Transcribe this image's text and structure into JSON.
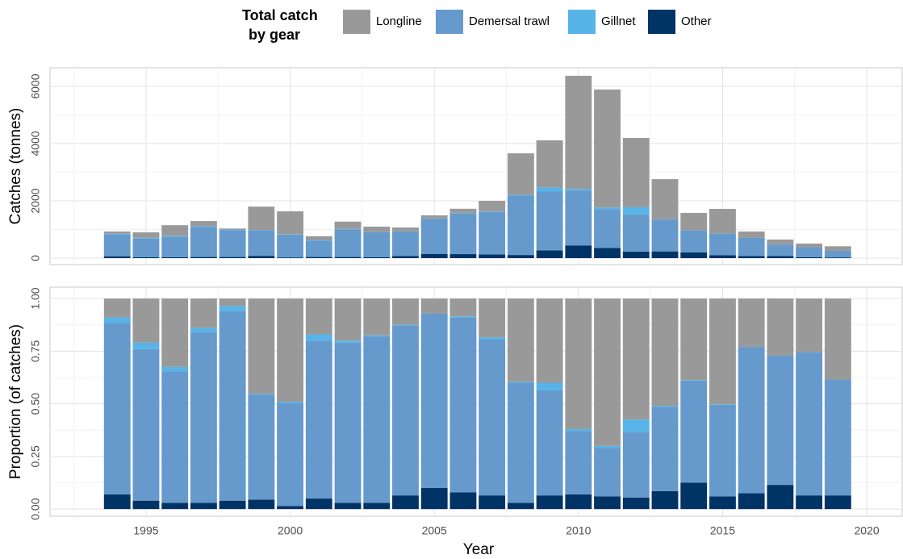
{
  "chart_data": [
    {
      "type": "stacked_bar",
      "legend_title": [
        "Total catch",
        "by gear"
      ],
      "y_label": "Catches (tonnes)",
      "x": [
        1994,
        1995,
        1996,
        1997,
        1998,
        1999,
        2000,
        2001,
        2002,
        2003,
        2004,
        2005,
        2006,
        2007,
        2008,
        2009,
        2010,
        2011,
        2012,
        2013,
        2014,
        2015,
        2016,
        2017,
        2018,
        2019
      ],
      "xlim": [
        1991.67,
        2021.23
      ],
      "ylim": [
        -225,
        6650
      ],
      "yticks": [
        0,
        2000,
        4000,
        6000
      ],
      "grid": true,
      "series": [
        {
          "name": "Longline",
          "color": "#999999",
          "values": [
            80,
            190,
            370,
            180,
            35,
            815,
            800,
            130,
            255,
            190,
            135,
            105,
            145,
            370,
            1445,
            1645,
            3950,
            4120,
            2420,
            1405,
            610,
            860,
            215,
            175,
            130,
            160
          ]
        },
        {
          "name": "Demersal trawl",
          "color": "#6699cc",
          "values": [
            760,
            650,
            720,
            1050,
            935,
            900,
            800,
            570,
            965,
            870,
            860,
            1235,
            1430,
            1480,
            2085,
            2055,
            1910,
            1355,
            1300,
            1105,
            765,
            750,
            645,
            400,
            345,
            230
          ]
        },
        {
          "name": "Gillnet",
          "color": "#56b4e9",
          "values": [
            25,
            25,
            25,
            25,
            25,
            5,
            10,
            25,
            15,
            5,
            5,
            5,
            10,
            20,
            20,
            145,
            65,
            60,
            250,
            15,
            5,
            5,
            0,
            0,
            0,
            0
          ]
        },
        {
          "name": "Other",
          "color": "#003366",
          "values": [
            65,
            35,
            35,
            40,
            40,
            80,
            25,
            40,
            40,
            35,
            70,
            150,
            140,
            130,
            110,
            270,
            445,
            355,
            230,
            235,
            200,
            105,
            70,
            75,
            35,
            25
          ]
        }
      ]
    },
    {
      "type": "stacked_bar",
      "y_label": "Proportion (of catches)",
      "x_label": "Year",
      "x": [
        1994,
        1995,
        1996,
        1997,
        1998,
        1999,
        2000,
        2001,
        2002,
        2003,
        2004,
        2005,
        2006,
        2007,
        2008,
        2009,
        2010,
        2011,
        2012,
        2013,
        2014,
        2015,
        2016,
        2017,
        2018,
        2019
      ],
      "xlim": [
        1991.67,
        2021.23
      ],
      "xticks": [
        1995,
        2000,
        2005,
        2010,
        2015,
        2020
      ],
      "ylim": [
        -0.034,
        1.054
      ],
      "yticks": [
        {
          "value": 0,
          "label": "0.00"
        },
        {
          "value": 0.25,
          "label": "0.25"
        },
        {
          "value": 0.5,
          "label": "0.50"
        },
        {
          "value": 0.75,
          "label": "0.75"
        },
        {
          "value": 1,
          "label": "1.00"
        }
      ],
      "grid": true,
      "series": [
        {
          "name": "Longline",
          "color": "#999999",
          "values": [
            0.09,
            0.21,
            0.325,
            0.14,
            0.035,
            0.452,
            0.49,
            0.17,
            0.2,
            0.175,
            0.125,
            0.07,
            0.085,
            0.185,
            0.395,
            0.4,
            0.62,
            0.7,
            0.575,
            0.51,
            0.387,
            0.502,
            0.23,
            0.27,
            0.255,
            0.385
          ]
        },
        {
          "name": "Demersal trawl",
          "color": "#6699cc",
          "values": [
            0.815,
            0.72,
            0.625,
            0.81,
            0.9,
            0.5,
            0.49,
            0.75,
            0.76,
            0.79,
            0.805,
            0.83,
            0.83,
            0.74,
            0.57,
            0.5,
            0.3,
            0.23,
            0.31,
            0.4,
            0.485,
            0.435,
            0.695,
            0.615,
            0.68,
            0.55
          ]
        },
        {
          "name": "Gillnet",
          "color": "#56b4e9",
          "values": [
            0.025,
            0.03,
            0.02,
            0.02,
            0.025,
            0.003,
            0.005,
            0.03,
            0.01,
            0.005,
            0.005,
            0,
            0.005,
            0.01,
            0.005,
            0.035,
            0.01,
            0.01,
            0.06,
            0.005,
            0.003,
            0.003,
            0,
            0,
            0,
            0
          ]
        },
        {
          "name": "Other",
          "color": "#003366",
          "values": [
            0.07,
            0.04,
            0.03,
            0.03,
            0.04,
            0.045,
            0.015,
            0.05,
            0.03,
            0.03,
            0.065,
            0.1,
            0.08,
            0.065,
            0.03,
            0.065,
            0.07,
            0.06,
            0.055,
            0.085,
            0.125,
            0.06,
            0.075,
            0.115,
            0.065,
            0.065
          ]
        }
      ]
    }
  ]
}
